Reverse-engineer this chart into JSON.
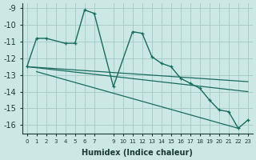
{
  "xlabel": "Humidex (Indice chaleur)",
  "background_color": "#cce8e4",
  "grid_color": "#aaceca",
  "line_color": "#1a6b5e",
  "xlim": [
    -0.5,
    23.5
  ],
  "ylim": [
    -16.5,
    -8.7
  ],
  "yticks": [
    -9,
    -10,
    -11,
    -12,
    -13,
    -14,
    -15,
    -16
  ],
  "xticks": [
    0,
    1,
    2,
    3,
    4,
    5,
    6,
    7,
    9,
    10,
    11,
    12,
    13,
    14,
    15,
    16,
    17,
    18,
    19,
    20,
    21,
    22,
    23
  ],
  "series": [
    {
      "x": [
        0,
        1,
        2,
        4,
        5,
        6,
        7,
        9,
        11,
        12,
        13,
        14,
        15,
        16,
        17,
        18,
        19,
        20,
        21,
        22,
        23
      ],
      "y": [
        -12.5,
        -10.8,
        -10.8,
        -11.1,
        -11.1,
        -9.1,
        -9.3,
        -13.7,
        -10.4,
        -10.5,
        -11.9,
        -12.3,
        -12.5,
        -13.2,
        -13.5,
        -13.8,
        -14.5,
        -15.1,
        -15.2,
        -16.2,
        -15.7
      ],
      "marker": true
    },
    {
      "x": [
        1,
        22
      ],
      "y": [
        -12.8,
        -16.2
      ],
      "marker": false
    },
    {
      "x": [
        0,
        23
      ],
      "y": [
        -12.5,
        -14.0
      ],
      "marker": false
    },
    {
      "x": [
        0,
        23
      ],
      "y": [
        -12.5,
        -13.4
      ],
      "marker": false
    }
  ]
}
